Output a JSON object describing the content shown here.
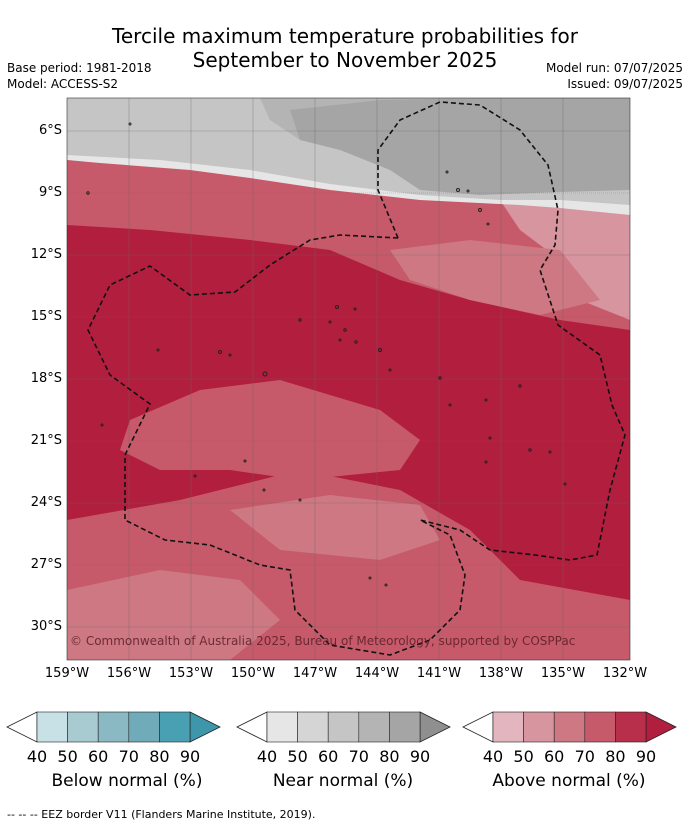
{
  "title_line1": "Tercile maximum temperature probabilities for",
  "title_line2": "September to November 2025",
  "base_period": "Base period: 1981-2018",
  "model": "Model: ACCESS-S2",
  "model_run": "Model run: 07/07/2025",
  "issued": "Issued: 09/07/2025",
  "copyright": "© Commonwealth of Australia 2025, Bureau of Meteorology, supported by COSPPac",
  "lat_labels": [
    "6°S",
    "9°S",
    "12°S",
    "15°S",
    "18°S",
    "21°S",
    "24°S",
    "27°S",
    "30°S"
  ],
  "lon_labels": [
    "159°W",
    "156°W",
    "153°W",
    "150°W",
    "147°W",
    "144°W",
    "141°W",
    "138°W",
    "135°W",
    "132°W"
  ],
  "legend": {
    "ticks": [
      "40",
      "50",
      "60",
      "70",
      "80",
      "90"
    ],
    "below": {
      "caption": "Below normal (%)",
      "colors": [
        "#c8e1e7",
        "#a8cbd2",
        "#8ab9c4",
        "#6fabb8",
        "#4aa0b3",
        "#3d96aa"
      ]
    },
    "near": {
      "caption": "Near normal (%)",
      "colors": [
        "#e6e6e6",
        "#d5d5d5",
        "#c5c5c5",
        "#b4b4b4",
        "#a5a5a5",
        "#8f8f8f"
      ]
    },
    "above": {
      "caption": "Above normal (%)",
      "colors": [
        "#e3b6bf",
        "#d7959f",
        "#cd7883",
        "#c65a6a",
        "#b82f4b",
        "#b21e3e"
      ]
    }
  },
  "eez_note": "-- -- -- EEZ border V11 (Flanders Marine Institute, 2019)."
}
